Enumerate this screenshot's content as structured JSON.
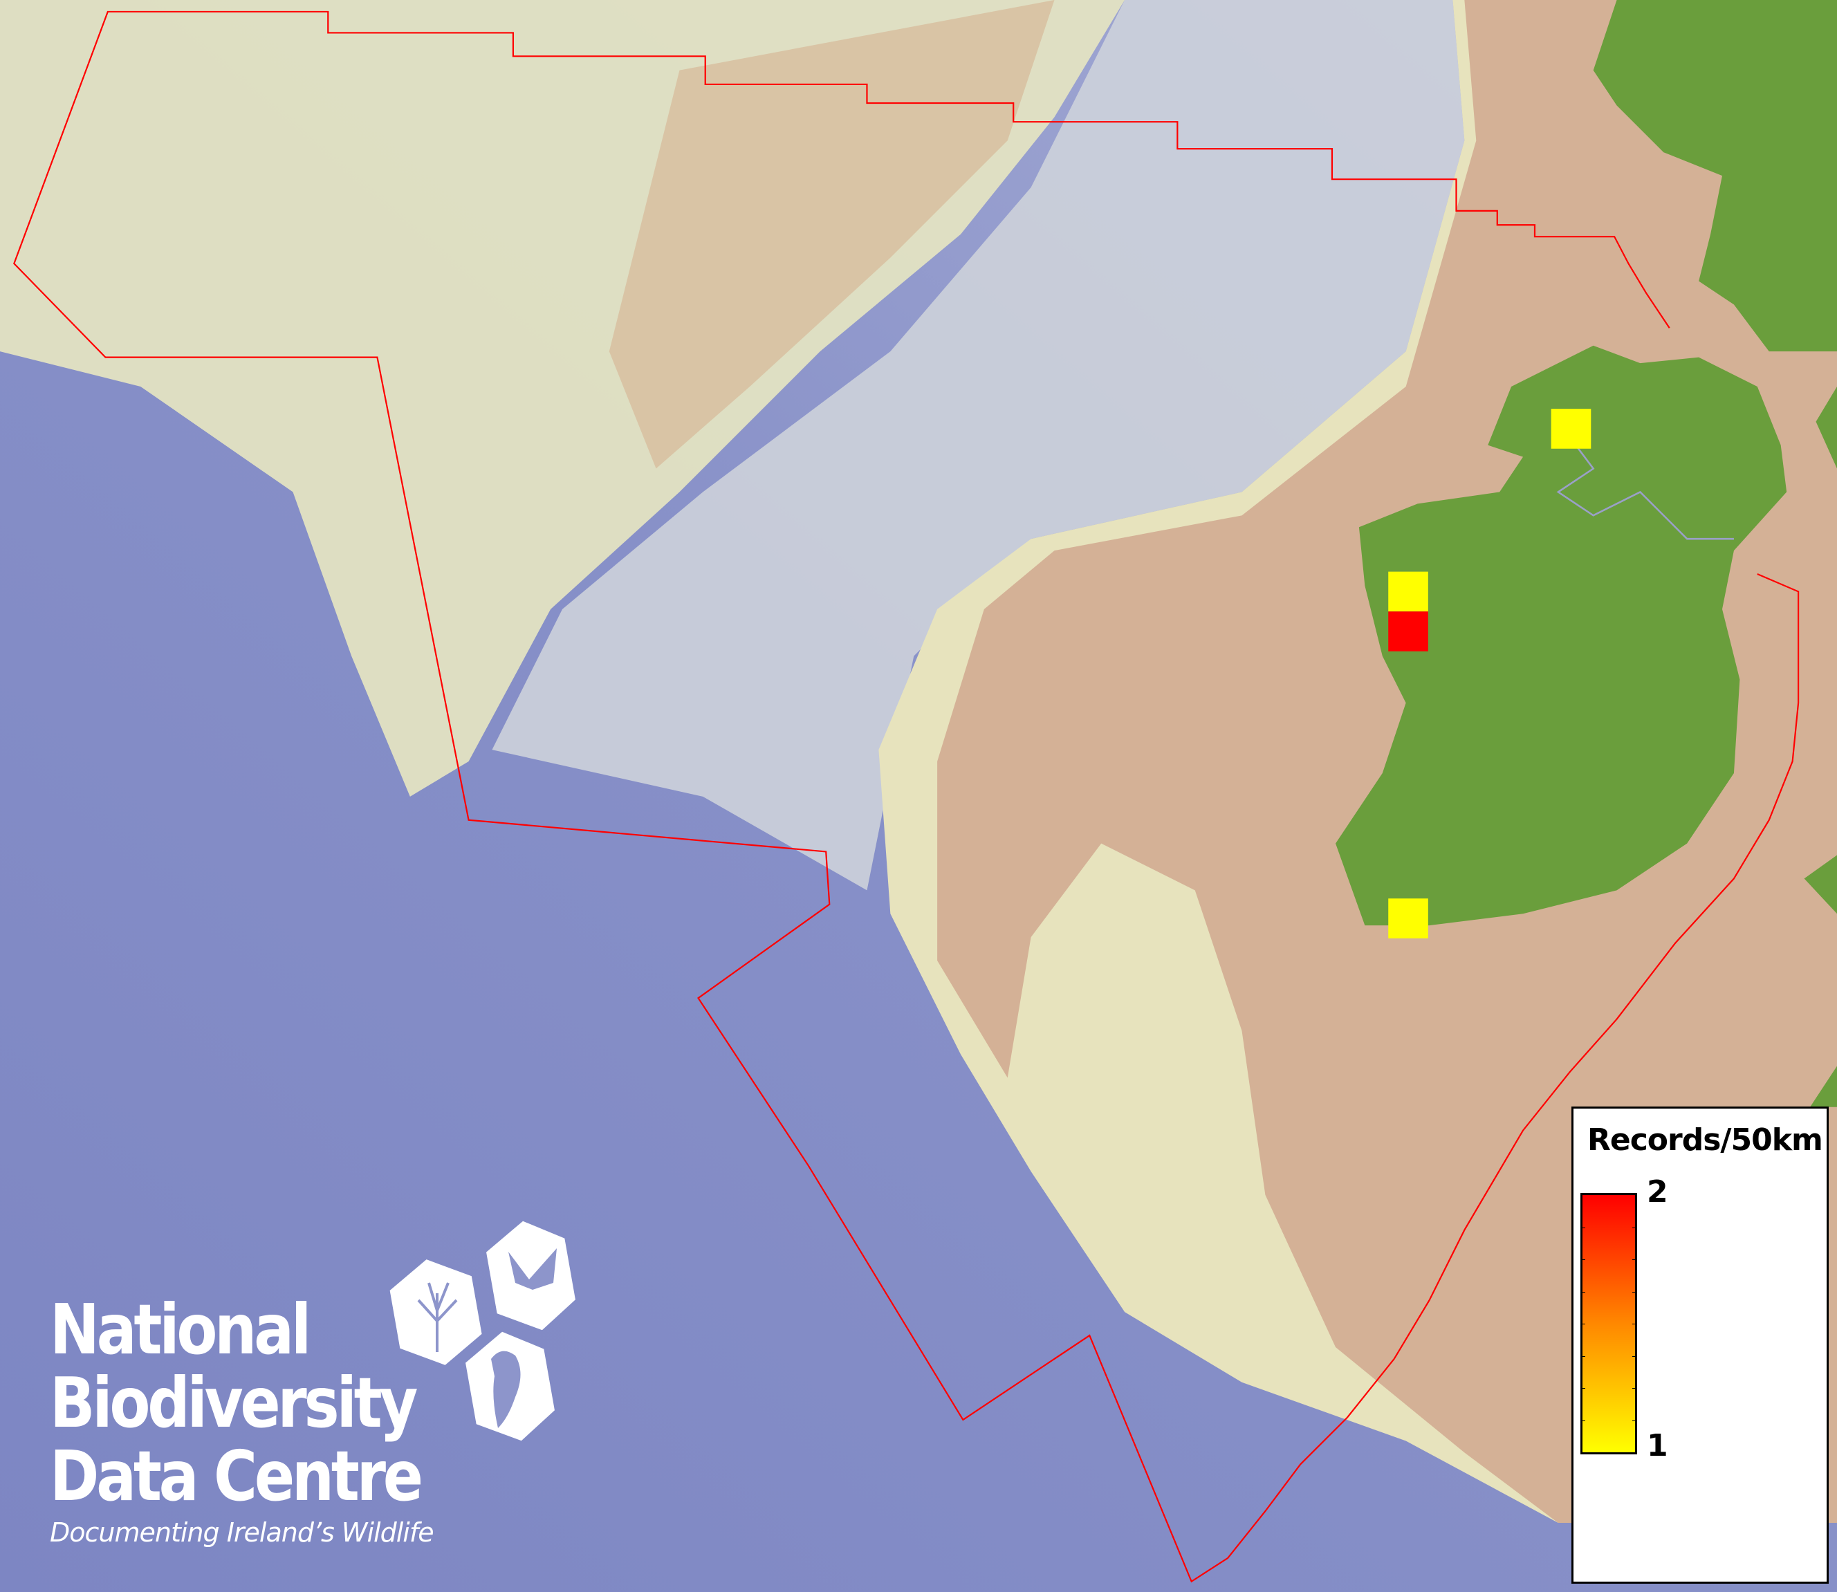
{
  "map": {
    "colors": {
      "deep_sea": "#7f88c4",
      "slope": "#c9cfd9",
      "shelf": "#e6e4bd",
      "shallow_shelf": "#d3b195",
      "land": "#6a9e3c",
      "boundary": "#ff0000",
      "border": "#9aa0c8"
    },
    "records": [
      {
        "count": 1,
        "color": "#ffff00"
      },
      {
        "count": 1,
        "color": "#ffff00"
      },
      {
        "count": 2,
        "color": "#ff0000"
      },
      {
        "count": 1,
        "color": "#ffff00"
      }
    ]
  },
  "legend": {
    "title": "Records/50km",
    "max_label": "2",
    "min_label": "1",
    "color_max": "#ff0000",
    "color_min": "#ffff00"
  },
  "logo": {
    "line1": "National",
    "line2": "Biodiversity",
    "line3": "Data Centre",
    "tagline": "Documenting Ireland’s Wildlife",
    "icons": [
      "tree-icon",
      "butterfly-icon",
      "seahorse-icon"
    ]
  }
}
